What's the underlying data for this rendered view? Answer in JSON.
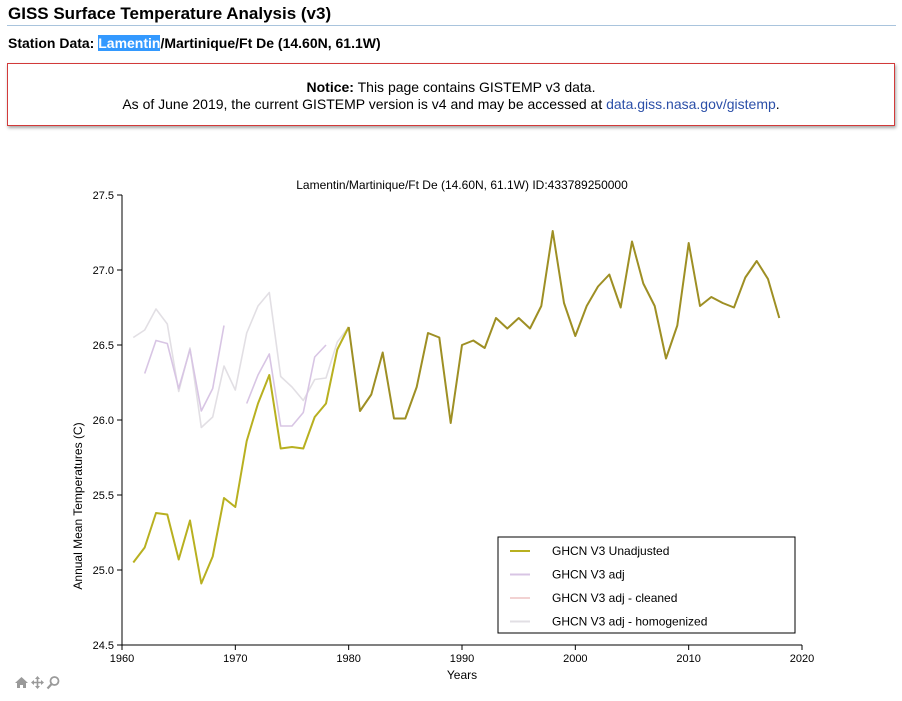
{
  "header": {
    "title": "GISS Surface Temperature Analysis (v3)",
    "station_prefix": "Station Data: ",
    "station_highlight": "Lamentin",
    "station_rest": "/Martinique/Ft De (14.60N, 61.1W)"
  },
  "notice": {
    "label": "Notice:",
    "line1": " This page contains GISTEMP v3 data.",
    "line2_text": "As of June 2019, the current GISTEMP version is v4 and may be accessed at ",
    "link": "data.giss.nasa.gov/gistemp",
    "line2_end": "."
  },
  "colors": {
    "unadjusted": "#b8b020",
    "unadjusted_late": "#9e8f24",
    "adj": "#d8c5e4",
    "cleaned": "#f2d2d2",
    "homogenized": "#e2dfe4",
    "notice_border": "#d23a3a",
    "link": "#2b4fa8",
    "highlight": "#3399ff"
  },
  "toolbar": {
    "icons": [
      "home-icon",
      "pan-icon",
      "zoom-icon"
    ]
  },
  "chart_data": {
    "type": "line",
    "title": "Lamentin/Martinique/Ft De (14.60N, 61.1W) ID:433789250000",
    "xlabel": "Years",
    "ylabel": "Annual Mean Temperatures (C)",
    "xlim": [
      1960,
      2020
    ],
    "ylim": [
      24.5,
      27.5
    ],
    "xticks": [
      "1960",
      "1970",
      "1980",
      "1990",
      "2000",
      "2010",
      "2020"
    ],
    "yticks": [
      "24.5",
      "25.0",
      "25.5",
      "26.0",
      "26.5",
      "27.0",
      "27.5"
    ],
    "legend_position": "bottom-right",
    "series": [
      {
        "name": "GHCN V3 Unadjusted",
        "color_key": "unadjusted",
        "points": [
          [
            1961,
            25.05
          ],
          [
            1962,
            25.15
          ],
          [
            1963,
            25.38
          ],
          [
            1964,
            25.37
          ],
          [
            1965,
            25.07
          ],
          [
            1966,
            25.33
          ],
          [
            1967,
            24.91
          ],
          [
            1968,
            25.09
          ],
          [
            1969,
            25.48
          ],
          [
            1970,
            25.42
          ],
          [
            1971,
            25.86
          ],
          [
            1972,
            26.11
          ],
          [
            1973,
            26.3
          ],
          [
            1974,
            25.81
          ],
          [
            1975,
            25.82
          ],
          [
            1976,
            25.81
          ],
          [
            1977,
            26.02
          ],
          [
            1978,
            26.11
          ],
          [
            1979,
            26.47
          ],
          [
            1980,
            26.62
          ],
          [
            1981,
            26.06
          ],
          [
            1982,
            26.17
          ],
          [
            1983,
            26.45
          ],
          [
            1984,
            26.01
          ],
          [
            1985,
            26.01
          ],
          [
            1986,
            26.22
          ],
          [
            1987,
            26.58
          ],
          [
            1988,
            26.55
          ],
          [
            1989,
            25.98
          ],
          [
            1990,
            26.5
          ],
          [
            1991,
            26.53
          ],
          [
            1992,
            26.48
          ],
          [
            1993,
            26.68
          ],
          [
            1994,
            26.61
          ],
          [
            1995,
            26.68
          ],
          [
            1996,
            26.61
          ],
          [
            1997,
            26.76
          ],
          [
            1998,
            27.26
          ],
          [
            1999,
            26.78
          ],
          [
            2000,
            26.56
          ],
          [
            2001,
            26.76
          ],
          [
            2002,
            26.89
          ],
          [
            2003,
            26.97
          ],
          [
            2004,
            26.75
          ],
          [
            2005,
            27.19
          ],
          [
            2006,
            26.91
          ],
          [
            2007,
            26.76
          ],
          [
            2008,
            26.41
          ],
          [
            2009,
            26.63
          ],
          [
            2010,
            27.18
          ],
          [
            2011,
            26.76
          ],
          [
            2012,
            26.82
          ],
          [
            2013,
            26.78
          ],
          [
            2014,
            26.75
          ],
          [
            2015,
            26.95
          ],
          [
            2016,
            27.06
          ],
          [
            2017,
            26.94
          ],
          [
            2018,
            26.68
          ]
        ]
      },
      {
        "name": "GHCN V3 adj",
        "color_key": "adj",
        "segments": [
          [
            [
              1962,
              26.31
            ],
            [
              1963,
              26.53
            ],
            [
              1964,
              26.51
            ],
            [
              1965,
              26.21
            ],
            [
              1966,
              26.47
            ],
            [
              1967,
              26.06
            ],
            [
              1968,
              26.21
            ],
            [
              1969,
              26.63
            ]
          ],
          [
            [
              1971,
              26.11
            ],
            [
              1972,
              26.3
            ],
            [
              1973,
              26.44
            ],
            [
              1974,
              25.96
            ],
            [
              1975,
              25.96
            ],
            [
              1976,
              26.05
            ],
            [
              1977,
              26.42
            ],
            [
              1978,
              26.5
            ]
          ]
        ]
      },
      {
        "name": "GHCN V3 adj - cleaned",
        "color_key": "cleaned",
        "segments": []
      },
      {
        "name": "GHCN V3 adj - homogenized",
        "color_key": "homogenized",
        "segments": [
          [
            [
              1961,
              26.55
            ],
            [
              1962,
              26.6
            ],
            [
              1963,
              26.74
            ],
            [
              1964,
              26.64
            ],
            [
              1965,
              26.19
            ],
            [
              1966,
              26.48
            ],
            [
              1967,
              25.95
            ],
            [
              1968,
              26.02
            ],
            [
              1969,
              26.36
            ],
            [
              1970,
              26.2
            ],
            [
              1971,
              26.58
            ],
            [
              1972,
              26.76
            ],
            [
              1973,
              26.85
            ],
            [
              1974,
              26.29
            ],
            [
              1975,
              26.22
            ],
            [
              1976,
              26.13
            ],
            [
              1977,
              26.27
            ],
            [
              1978,
              26.28
            ],
            [
              1979,
              26.52
            ],
            [
              1980,
              26.62
            ]
          ]
        ]
      }
    ]
  }
}
